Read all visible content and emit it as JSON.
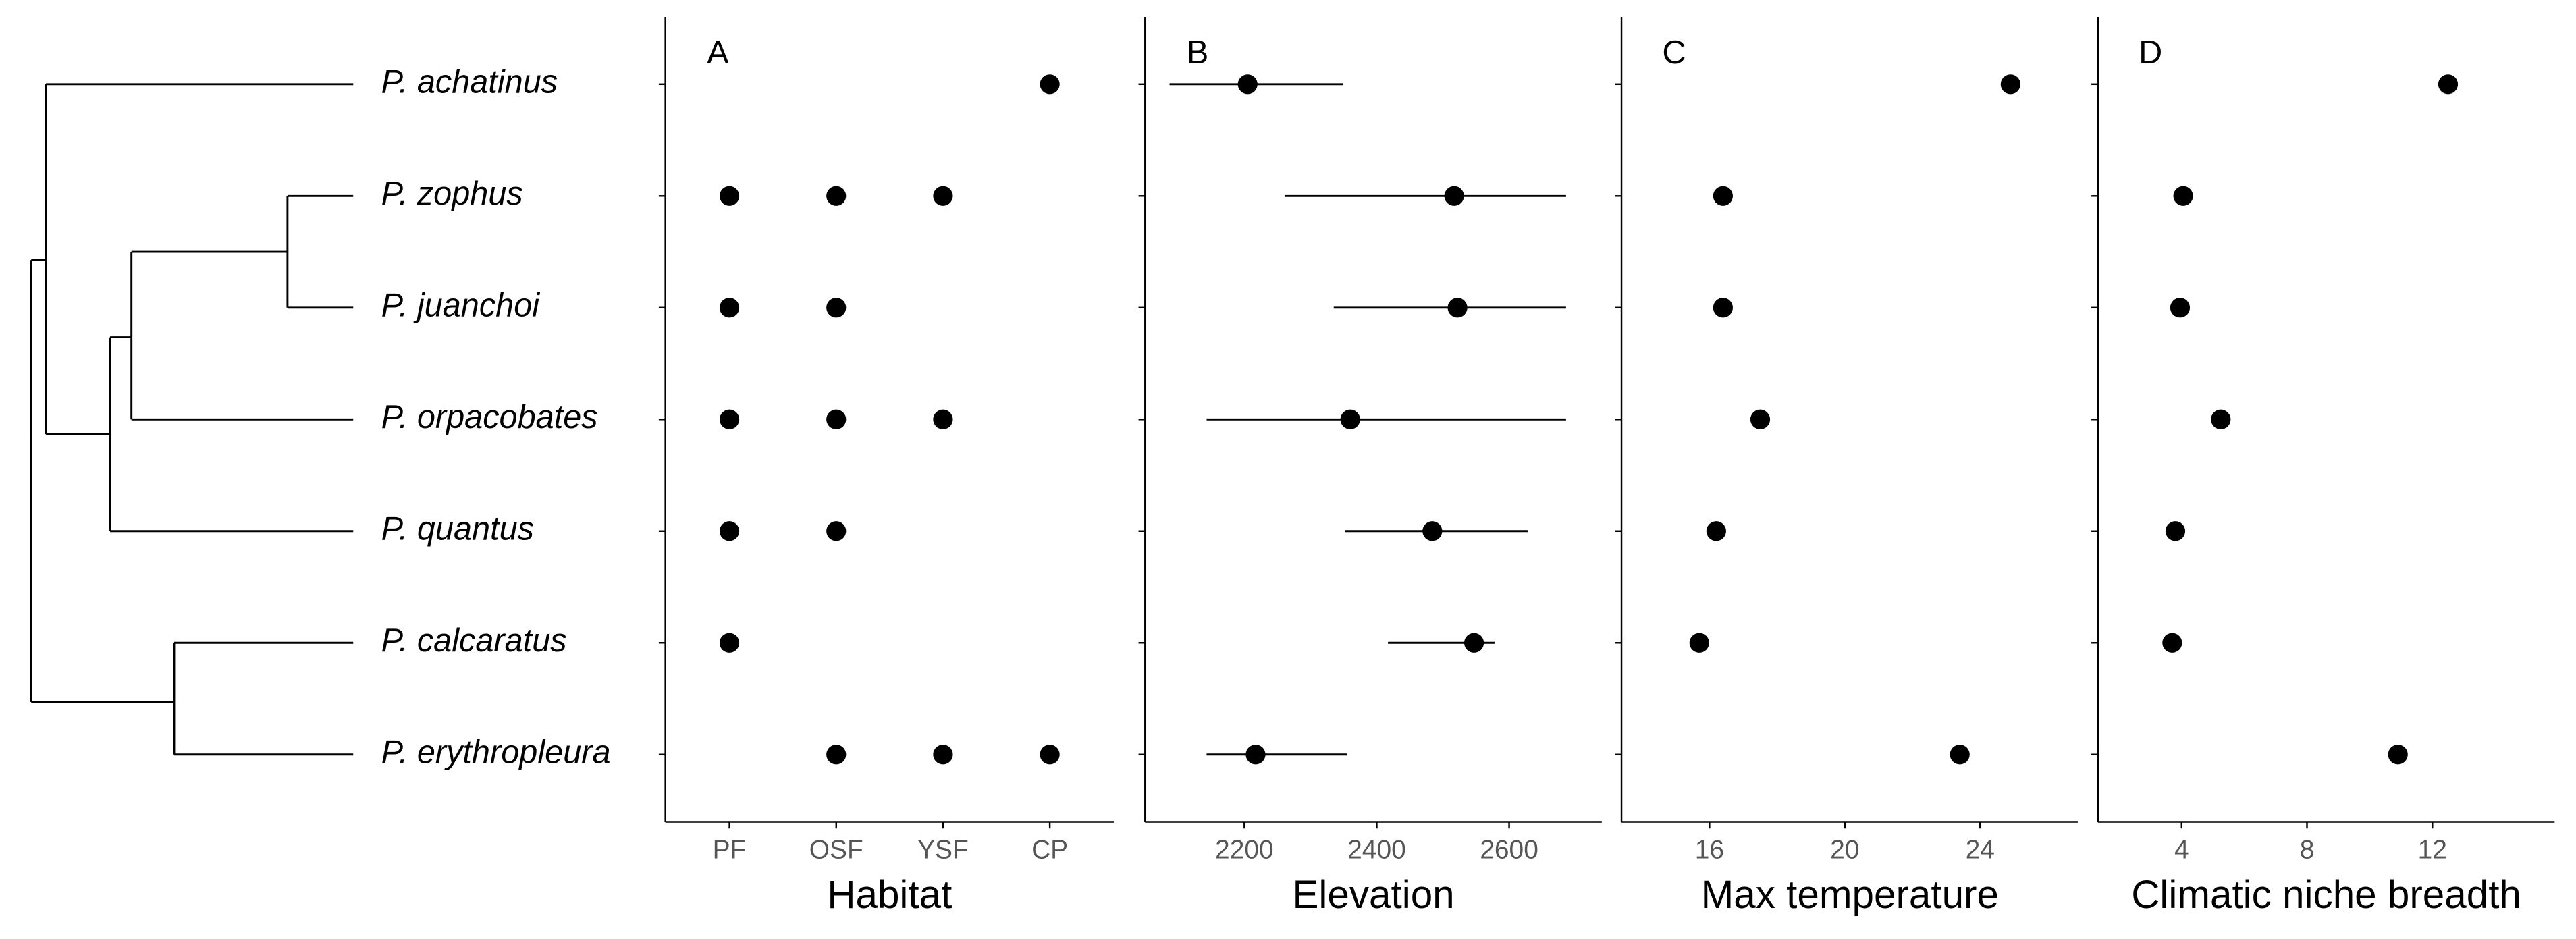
{
  "chart_data": [
    {
      "type": "dotmatrix",
      "label": "A",
      "xlabel": "Habitat",
      "categories": [
        "P. achatinus",
        "P. zophus",
        "P. juanchoi",
        "P. orpacobates",
        "P. quantus",
        "P. calcaratus",
        "P. erythropleura"
      ],
      "x_categories": [
        "PF",
        "OSF",
        "YSF",
        "CP"
      ],
      "values": [
        [
          0,
          0,
          0,
          1
        ],
        [
          1,
          1,
          1,
          0
        ],
        [
          1,
          1,
          0,
          0
        ],
        [
          1,
          1,
          1,
          0
        ],
        [
          1,
          1,
          0,
          0
        ],
        [
          1,
          0,
          0,
          0
        ],
        [
          0,
          1,
          1,
          1
        ]
      ],
      "color": "#000000"
    },
    {
      "type": "range",
      "label": "B",
      "xlabel": "Elevation",
      "values": [
        2205,
        2517,
        2522,
        2360,
        2484,
        2547,
        2217
      ],
      "low": [
        2087,
        2261,
        2335,
        2143,
        2352,
        2417,
        2143
      ],
      "high": [
        2349,
        2686,
        2686,
        2686,
        2628,
        2578,
        2355
      ],
      "xlim": [
        2050,
        2740
      ],
      "xticks": [
        2200,
        2400,
        2600
      ],
      "color": "#000000"
    },
    {
      "type": "dot",
      "label": "C",
      "xlabel": "Max temperature",
      "values": [
        24.9,
        16.4,
        16.4,
        17.5,
        16.2,
        15.7,
        23.4
      ],
      "xlim": [
        13.4,
        26.9
      ],
      "xticks": [
        16,
        20,
        24
      ],
      "color": "#000000"
    },
    {
      "type": "dot",
      "label": "D",
      "xlabel": "Climatic niche breadth",
      "values": [
        12.5,
        4.05,
        3.95,
        5.25,
        3.8,
        3.7,
        10.9
      ],
      "xlim": [
        1.33,
        15.9
      ],
      "xticks": [
        4,
        8,
        12
      ],
      "color": "#000000"
    }
  ]
}
